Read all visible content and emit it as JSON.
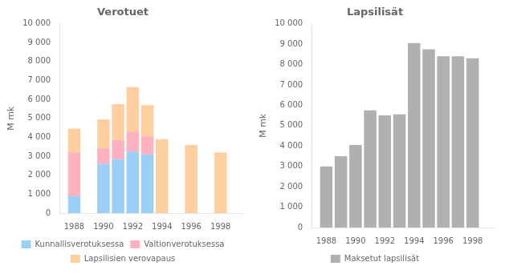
{
  "chart_data": [
    {
      "type": "bar",
      "title": "Verotuet",
      "ylabel": "M mk",
      "x": [
        1988,
        1990,
        1991,
        1992,
        1993,
        1994,
        1996,
        1998
      ],
      "series": [
        {
          "name": "Kunnallisverotuksessa",
          "values": [
            900,
            2600,
            2850,
            3250,
            3100,
            0,
            0,
            0
          ]
        },
        {
          "name": "Valtionverotuksessa",
          "values": [
            2300,
            800,
            1000,
            1050,
            950,
            0,
            0,
            0
          ]
        },
        {
          "name": "Lapsilisien verovapaus",
          "values": [
            1250,
            1550,
            1900,
            2350,
            1650,
            3900,
            3600,
            3200
          ]
        }
      ],
      "stacked": true,
      "xlim": [
        1987,
        1999.5
      ],
      "xticks": [
        1988,
        1990,
        1992,
        1994,
        1996,
        1998
      ],
      "ylim": [
        0,
        10000
      ],
      "yticks": [
        0,
        {
          "value": 1000,
          "label": "1 000"
        },
        {
          "value": 2000,
          "label": "2 000"
        },
        {
          "value": 3000,
          "label": "3 000"
        },
        {
          "value": 4000,
          "label": "4 000"
        },
        {
          "value": 5000,
          "label": "5 000"
        },
        {
          "value": 6000,
          "label": "6 000"
        },
        {
          "value": 7000,
          "label": "7 000"
        },
        {
          "value": 8000,
          "label": "8 000"
        },
        {
          "value": 9000,
          "label": "9 000"
        },
        {
          "value": 10000,
          "label": "10 000"
        }
      ],
      "grid": false,
      "legend": "bottom"
    },
    {
      "type": "bar",
      "title": "Lapsilisät",
      "ylabel": "M mk",
      "x": [
        1988,
        1989,
        1990,
        1991,
        1992,
        1993,
        1994,
        1995,
        1996,
        1997,
        1998
      ],
      "series": [
        {
          "name": "Maksetut lapsilisät",
          "color": "#b0b0b0",
          "values": [
            3000,
            3500,
            4050,
            5750,
            5500,
            5550,
            9050,
            8750,
            8400,
            8400,
            8300
          ]
        }
      ],
      "xlim": [
        1987,
        1999.5
      ],
      "xticks": [
        1988,
        1990,
        1992,
        1994,
        1996,
        1998
      ],
      "ylim": [
        0,
        10000
      ],
      "yticks": [
        0,
        {
          "value": 1000,
          "label": "1 000"
        },
        {
          "value": 2000,
          "label": "2 000"
        },
        {
          "value": 3000,
          "label": "3 000"
        },
        {
          "value": 4000,
          "label": "4 000"
        },
        {
          "value": 5000,
          "label": "5 000"
        },
        {
          "value": 6000,
          "label": "6 000"
        },
        {
          "value": 7000,
          "label": "7 000"
        },
        {
          "value": 8000,
          "label": "8 000"
        },
        {
          "value": 9000,
          "label": "9 000"
        },
        {
          "value": 10000,
          "label": "10 000"
        }
      ],
      "grid": false,
      "legend": "bottom"
    }
  ]
}
